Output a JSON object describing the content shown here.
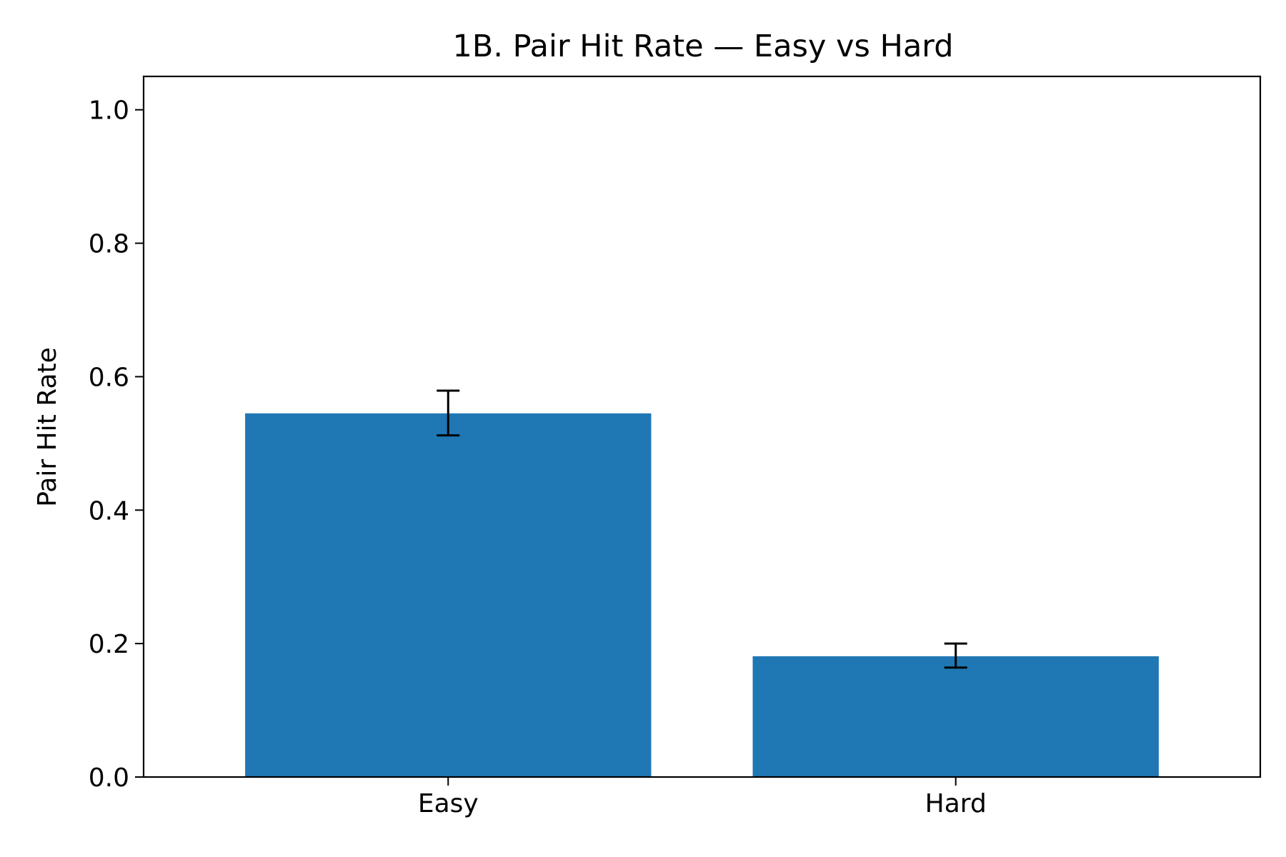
{
  "chart_data": {
    "type": "bar",
    "title": "1B. Pair Hit Rate — Easy vs Hard",
    "xlabel": "",
    "ylabel": "Pair Hit Rate",
    "categories": [
      "Easy",
      "Hard"
    ],
    "values": [
      0.545,
      0.181
    ],
    "error_low": [
      0.512,
      0.164
    ],
    "error_high": [
      0.579,
      0.2
    ],
    "ylim": [
      0,
      1.05
    ],
    "yticks": [
      "0.0",
      "0.2",
      "0.4",
      "0.6",
      "0.8",
      "1.0"
    ],
    "grid": false,
    "legend": "none",
    "bar_color": "#1f77b4",
    "error_color": "#000000"
  }
}
